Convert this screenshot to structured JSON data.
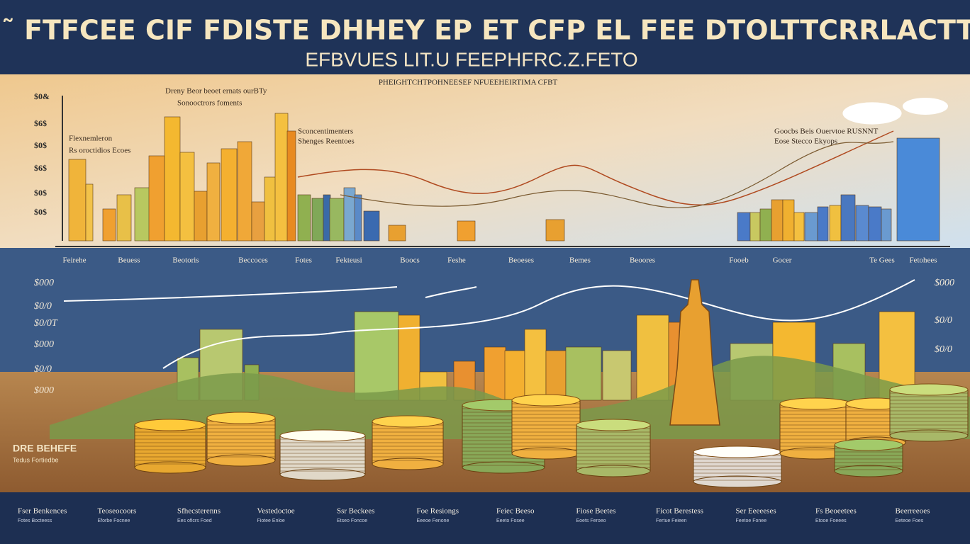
{
  "header": {
    "title": "F˜ FTFCEE CIF FDISTE DHHEY EP ET CFP EL FEE DTOLTTCRRLACTT!",
    "subtitle": "EFBVUES LIT.U FEEPHFRC.Z.FETO",
    "caption": "PHEIGHTCHTPOHNEESEF NFUEEHEIRTIMA CFBT"
  },
  "upper_panel": {
    "y_labels": [
      "$0&",
      "$6$",
      "$0$",
      "$6$",
      "$0$",
      "$0$"
    ],
    "annotations": [
      "Dreny Beor beoet ernats ourBTy",
      "Sonooctrors foments",
      "Flexnemleron",
      "Rs oroctidios Ecoes",
      "Sconcentimenters",
      "Shenges Reentoes",
      "Goocbs Beis Ouervtoe RUSNNT",
      "Eose Stecco Ekyops"
    ]
  },
  "categories": [
    "Feirehe",
    "Beuess",
    "Beotoris",
    "Beccoces",
    "Fotes",
    "Fekteusi",
    "Boocs",
    "Feshe",
    "Beoeses",
    "Bemes",
    "Beoores",
    "Fooeb",
    "Gocer",
    "Te Gees",
    "Fetohees"
  ],
  "lower_panel": {
    "left_labels": [
      "$000",
      "$0/0",
      "$0/0T",
      "$000",
      "$0/0",
      "$000"
    ],
    "right_labels": [
      "$000",
      "$0/0",
      "$0/0"
    ],
    "side_title": "DRE BEHEFE",
    "side_note": "Tedus Fortiedbe"
  },
  "footer": [
    {
      "title": "Fser Benkences",
      "note": "Fotes Bocteess"
    },
    {
      "title": "Teoseocoors",
      "note": "Eforbe Focnee"
    },
    {
      "title": "Sfhecsterenns",
      "note": "Ees oficrs Foed"
    },
    {
      "title": "Vestedoctoe",
      "note": "Fiotee Enloe"
    },
    {
      "title": "Ssr Beckees",
      "note": "Etseo Foncoe"
    },
    {
      "title": "Foe Resiongs",
      "note": "Eeeoe Fenone"
    },
    {
      "title": "Feiec Beeso",
      "note": "Eeeto Fosee"
    },
    {
      "title": "Fiose Beetes",
      "note": "Eoets Feroeo"
    },
    {
      "title": "Ficot Berestess",
      "note": "Fertue Feieen"
    },
    {
      "title": "Ser Eeeeeses",
      "note": "Feetoe Fonee"
    },
    {
      "title": "Fs Beoeetees",
      "note": "Etooe Foeees"
    },
    {
      "title": "Beerreeoes",
      "note": "Eeteoe Foes"
    }
  ]
}
